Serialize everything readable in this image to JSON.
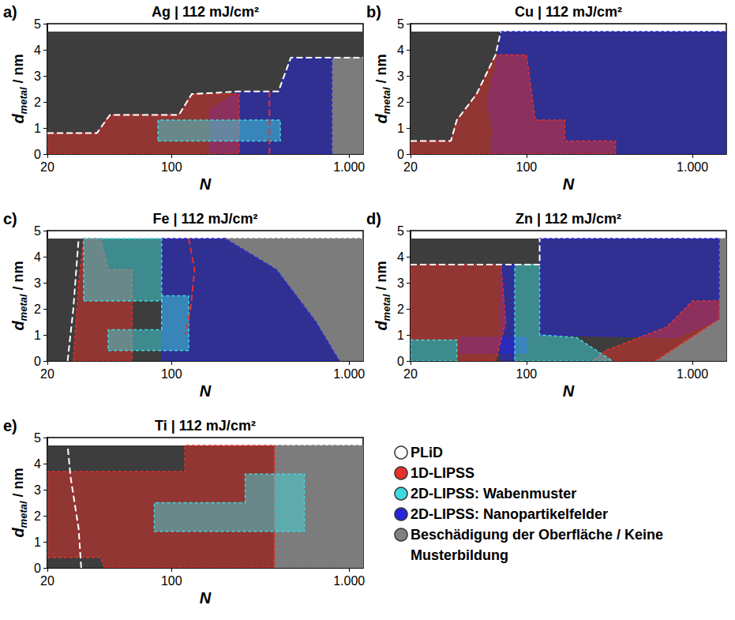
{
  "chart_data": [
    {
      "letter": "a)",
      "type": "phase_diagram",
      "title": "Ag | 112 mJ/cm²",
      "xlabel": "N",
      "ylabel": {
        "text": "d",
        "subscript": "metal",
        "unit": " / nm"
      },
      "log": "x",
      "grid": false,
      "xlim": [
        20,
        1200
      ],
      "ylim": [
        0,
        5
      ],
      "xticks": [
        20,
        100,
        {
          "value": 1000,
          "label": "1.000"
        }
      ],
      "yticks": [
        0,
        1,
        2,
        3,
        4,
        5
      ],
      "regions": [
        {
          "class": "PLiD",
          "points": [
            [
              20,
              0
            ],
            [
              1200,
              0
            ],
            [
              1200,
              4.7
            ],
            [
              20,
              4.7
            ]
          ]
        },
        {
          "class": "Beschädigung der Oberfläche / Keine Musterbildung",
          "points": [
            [
              800,
              0
            ],
            [
              1200,
              0
            ],
            [
              1200,
              3.7
            ],
            [
              800,
              3.7
            ]
          ]
        },
        {
          "class": "2D-LIPSS: Nanopartikelfelder",
          "points": [
            [
              165,
              0
            ],
            [
              800,
              0
            ],
            [
              800,
              3.7
            ],
            [
              470,
              3.7
            ],
            [
              400,
              2.4
            ],
            [
              240,
              2.4
            ],
            [
              165,
              1.7
            ]
          ]
        },
        {
          "class": "1D-LIPSS",
          "points": [
            [
              20,
              0
            ],
            [
              240,
              0
            ],
            [
              240,
              2.3
            ],
            [
              130,
              2.3
            ],
            [
              110,
              1.5
            ],
            [
              45,
              1.5
            ],
            [
              38,
              0.8
            ],
            [
              20,
              0.8
            ]
          ]
        },
        {
          "class": "2D-LIPSS: Wabenmuster",
          "points": [
            [
              84,
              0.5
            ],
            [
              410,
              0.5
            ],
            [
              410,
              1.3
            ],
            [
              84,
              1.3
            ]
          ]
        }
      ],
      "boundaries": [
        {
          "class": "PLiD",
          "points": [
            [
              20,
              0.8
            ],
            [
              38,
              0.8
            ],
            [
              45,
              1.5
            ],
            [
              110,
              1.5
            ],
            [
              130,
              2.3
            ],
            [
              240,
              2.4
            ],
            [
              400,
              2.4
            ],
            [
              470,
              3.7
            ],
            [
              1200,
              3.7
            ]
          ]
        },
        {
          "class": "1D-LIPSS",
          "points": [
            [
              356,
              0
            ],
            [
              356,
              2.4
            ]
          ]
        }
      ]
    },
    {
      "letter": "b)",
      "type": "phase_diagram",
      "title": "Cu | 112 mJ/cm²",
      "xlabel": "N",
      "ylabel": {
        "text": "d",
        "subscript": "metal",
        "unit": " / nm"
      },
      "log": "x",
      "grid": false,
      "xlim": [
        20,
        1600
      ],
      "ylim": [
        0,
        5
      ],
      "xticks": [
        20,
        100,
        {
          "value": 1000,
          "label": "1.000"
        }
      ],
      "yticks": [
        0,
        1,
        2,
        3,
        4,
        5
      ],
      "regions": [
        {
          "class": "PLiD",
          "points": [
            [
              20,
              0
            ],
            [
              1600,
              0
            ],
            [
              1600,
              4.7
            ],
            [
              20,
              4.7
            ]
          ]
        },
        {
          "class": "2D-LIPSS: Nanopartikelfelder",
          "points": [
            [
              61,
              0
            ],
            [
              1600,
              0
            ],
            [
              1600,
              4.7
            ],
            [
              70,
              4.7
            ],
            [
              66,
              3.5
            ],
            [
              58,
              2.0
            ],
            [
              63,
              0.8
            ]
          ]
        },
        {
          "class": "1D-LIPSS",
          "points": [
            [
              20,
              0
            ],
            [
              344,
              0
            ],
            [
              344,
              0.5
            ],
            [
              170,
              0.5
            ],
            [
              170,
              1.3
            ],
            [
              113,
              1.3
            ],
            [
              100,
              3.8
            ],
            [
              65,
              3.8
            ],
            [
              50,
              2.3
            ],
            [
              38,
              1.3
            ],
            [
              35,
              0.5
            ],
            [
              20,
              0.5
            ]
          ]
        }
      ],
      "boundaries": [
        {
          "class": "PLiD",
          "points": [
            [
              20,
              0.5
            ],
            [
              35,
              0.5
            ],
            [
              38,
              1.3
            ],
            [
              50,
              2.3
            ],
            [
              65,
              3.8
            ],
            [
              70,
              4.7
            ]
          ]
        }
      ]
    },
    {
      "letter": "c)",
      "type": "phase_diagram",
      "title": "Fe | 112 mJ/cm²",
      "xlabel": "N",
      "ylabel": {
        "text": "d",
        "subscript": "metal",
        "unit": " / nm"
      },
      "log": "x",
      "grid": false,
      "xlim": [
        20,
        1200
      ],
      "ylim": [
        0,
        5
      ],
      "xticks": [
        20,
        100,
        {
          "value": 1000,
          "label": "1.000"
        }
      ],
      "yticks": [
        0,
        1,
        2,
        3,
        4,
        5
      ],
      "regions": [
        {
          "class": "PLiD",
          "points": [
            [
              20,
              0
            ],
            [
              1200,
              0
            ],
            [
              1200,
              4.7
            ],
            [
              20,
              4.7
            ]
          ]
        },
        {
          "class": "Beschädigung der Oberfläche / Keine Musterbildung",
          "points": [
            [
              880,
              0
            ],
            [
              1200,
              0
            ],
            [
              1200,
              4.7
            ],
            [
              200,
              4.7
            ],
            [
              390,
              3.5
            ],
            [
              650,
              1.5
            ]
          ]
        },
        {
          "class": "2D-LIPSS: Nanopartikelfelder",
          "points": [
            [
              88,
              0
            ],
            [
              880,
              0
            ],
            [
              650,
              1.5
            ],
            [
              390,
              3.5
            ],
            [
              200,
              4.7
            ],
            [
              88,
              4.7
            ]
          ]
        },
        {
          "class": "1D-LIPSS",
          "points": [
            [
              28,
              0
            ],
            [
              60,
              0
            ],
            [
              60,
              3.5
            ],
            [
              44,
              3.5
            ],
            [
              40,
              4.7
            ],
            [
              32,
              4.7
            ],
            [
              30,
              3.0
            ]
          ]
        },
        {
          "class": "2D-LIPSS: Wabenmuster",
          "points": [
            [
              32,
              2.3
            ],
            [
              88,
              2.3
            ],
            [
              88,
              4.7
            ],
            [
              32,
              4.7
            ]
          ]
        },
        {
          "class": "2D-LIPSS: Wabenmuster",
          "points": [
            [
              44,
              0.4
            ],
            [
              125,
              0.4
            ],
            [
              125,
              2.5
            ],
            [
              88,
              2.5
            ],
            [
              88,
              1.2
            ],
            [
              44,
              1.2
            ]
          ]
        }
      ],
      "boundaries": [
        {
          "class": "PLiD",
          "points": [
            [
              26,
              0
            ],
            [
              28,
              2.0
            ],
            [
              30,
              4.7
            ]
          ]
        },
        {
          "class": "1D-LIPSS",
          "points": [
            [
              125,
              4.7
            ],
            [
              135,
              3.5
            ],
            [
              128,
              2.0
            ],
            [
              120,
              1.0
            ]
          ]
        }
      ]
    },
    {
      "letter": "d)",
      "type": "phase_diagram",
      "title": "Zn | 112 mJ/cm²",
      "xlabel": "N",
      "ylabel": {
        "text": "d",
        "subscript": "metal",
        "unit": " / nm"
      },
      "log": "x",
      "grid": false,
      "xlim": [
        20,
        1600
      ],
      "ylim": [
        0,
        5
      ],
      "xticks": [
        20,
        100,
        {
          "value": 1000,
          "label": "1.000"
        }
      ],
      "yticks": [
        0,
        1,
        2,
        3,
        4,
        5
      ],
      "regions": [
        {
          "class": "PLiD",
          "points": [
            [
              20,
              0
            ],
            [
              1600,
              0
            ],
            [
              1600,
              4.7
            ],
            [
              20,
              4.7
            ]
          ]
        },
        {
          "class": "Beschädigung der Oberfläche / Keine Musterbildung",
          "points": [
            [
              600,
              0
            ],
            [
              1600,
              0
            ],
            [
              1600,
              4.7
            ],
            [
              1450,
              4.7
            ],
            [
              1450,
              1.6
            ]
          ]
        },
        {
          "class": "2D-LIPSS: Nanopartikelfelder",
          "points": [
            [
              120,
              1.0
            ],
            [
              800,
              0.9
            ],
            [
              1450,
              1.6
            ],
            [
              1450,
              4.7
            ],
            [
              120,
              4.7
            ]
          ]
        },
        {
          "class": "2D-LIPSS: Nanopartikelfelder",
          "points": [
            [
              70,
              0
            ],
            [
              85,
              0
            ],
            [
              85,
              3.7
            ],
            [
              70,
              3.7
            ]
          ]
        },
        {
          "class": "2D-LIPSS: Nanopartikelfelder",
          "points": [
            [
              40,
              0.3
            ],
            [
              100,
              0.3
            ],
            [
              100,
              0.9
            ],
            [
              40,
              0.9
            ]
          ]
        },
        {
          "class": "1D-LIPSS",
          "points": [
            [
              20,
              0.8
            ],
            [
              38,
              0.8
            ],
            [
              38,
              0
            ],
            [
              65,
              0
            ],
            [
              75,
              1.5
            ],
            [
              70,
              3.7
            ],
            [
              20,
              3.7
            ]
          ]
        },
        {
          "class": "1D-LIPSS",
          "points": [
            [
              250,
              0
            ],
            [
              600,
              0
            ],
            [
              1450,
              1.6
            ],
            [
              1450,
              2.3
            ],
            [
              1000,
              2.3
            ],
            [
              700,
              1.3
            ],
            [
              300,
              0.4
            ]
          ]
        },
        {
          "class": "2D-LIPSS: Wabenmuster",
          "points": [
            [
              20,
              0
            ],
            [
              38,
              0
            ],
            [
              38,
              0.8
            ],
            [
              20,
              0.8
            ]
          ]
        },
        {
          "class": "2D-LIPSS: Wabenmuster",
          "points": [
            [
              85,
              0
            ],
            [
              330,
              0
            ],
            [
              200,
              0.9
            ],
            [
              120,
              1.0
            ],
            [
              120,
              3.7
            ],
            [
              85,
              3.7
            ]
          ]
        }
      ],
      "boundaries": [
        {
          "class": "PLiD",
          "points": [
            [
              20,
              3.7
            ],
            [
              120,
              3.7
            ],
            [
              120,
              4.7
            ]
          ]
        }
      ]
    },
    {
      "letter": "e)",
      "type": "phase_diagram",
      "title": "Ti | 112 mJ/cm²",
      "xlabel": "N",
      "ylabel": {
        "text": "d",
        "subscript": "metal",
        "unit": " / nm"
      },
      "log": "x",
      "grid": false,
      "xlim": [
        20,
        1200
      ],
      "ylim": [
        0,
        5
      ],
      "xticks": [
        20,
        100,
        {
          "value": 1000,
          "label": "1.000"
        }
      ],
      "yticks": [
        0,
        1,
        2,
        3,
        4,
        5
      ],
      "regions": [
        {
          "class": "PLiD",
          "points": [
            [
              20,
              0
            ],
            [
              1200,
              0
            ],
            [
              1200,
              4.7
            ],
            [
              20,
              4.7
            ]
          ]
        },
        {
          "class": "Beschädigung der Oberfläche / Keine Musterbildung",
          "points": [
            [
              380,
              0
            ],
            [
              1200,
              0
            ],
            [
              1200,
              4.7
            ],
            [
              380,
              4.7
            ]
          ]
        },
        {
          "class": "1D-LIPSS",
          "points": [
            [
              20,
              0.4
            ],
            [
              40,
              0.4
            ],
            [
              42,
              0
            ],
            [
              380,
              0
            ],
            [
              380,
              4.7
            ],
            [
              119,
              4.7
            ],
            [
              119,
              3.7
            ],
            [
              20,
              3.7
            ]
          ]
        },
        {
          "class": "2D-LIPSS: Wabenmuster",
          "points": [
            [
              80,
              1.4
            ],
            [
              560,
              1.4
            ],
            [
              560,
              3.6
            ],
            [
              260,
              3.6
            ],
            [
              260,
              2.5
            ],
            [
              80,
              2.5
            ]
          ]
        }
      ],
      "boundaries": [
        {
          "class": "PLiD",
          "points": [
            [
              31,
              0
            ],
            [
              30,
              1.5
            ],
            [
              27,
              3.5
            ],
            [
              26,
              4.7
            ]
          ]
        }
      ]
    }
  ],
  "legend": "lower right",
  "legend_entries": [
    {
      "label": "PLiD",
      "color": "#ffffff"
    },
    {
      "label": "1D-LIPSS",
      "color": "#e8302a"
    },
    {
      "label": "2D-LIPSS: Wabenmuster",
      "color": "#3fd9e0"
    },
    {
      "label": "2D-LIPSS: Nanopartikelfelder",
      "color": "#2626d9"
    },
    {
      "label": "Beschädigung der Oberfläche / Keine Musterbildung",
      "color": "#808080"
    }
  ]
}
